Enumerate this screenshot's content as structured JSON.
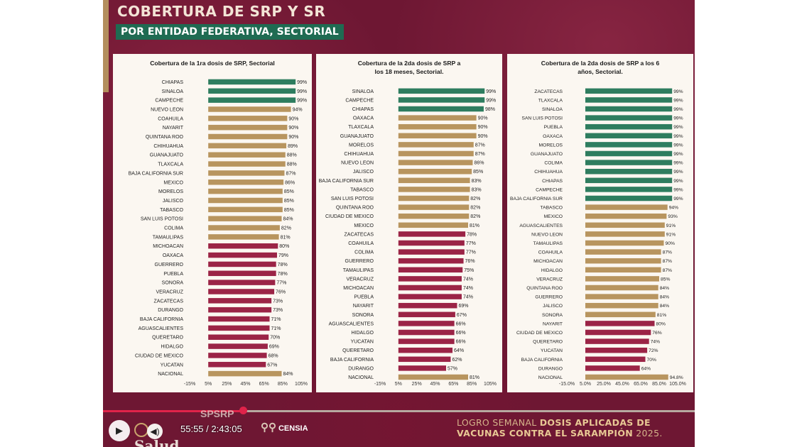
{
  "header": {
    "title": "COBERTURA DE SRP Y SR",
    "subtitle": "POR ENTIDAD FEDERATIVA, SECTORIAL"
  },
  "colors": {
    "green": "#2e7d5f",
    "gold": "#b8955f",
    "red": "#9b2446",
    "background": "#6e1733",
    "panel": "#fbf7f1"
  },
  "chart_data": [
    {
      "type": "bar",
      "orientation": "horizontal",
      "title": "Cobertura de la 1ra dosis de SRP, Sectorial",
      "xlim": [
        -15,
        105
      ],
      "ticks": [
        "-15%",
        "5%",
        "25%",
        "45%",
        "65%",
        "85%",
        "105%"
      ],
      "categories": [
        "CHIAPAS",
        "SINALOA",
        "CAMPECHE",
        "NUEVO LEON",
        "COAHUILA",
        "NAYARIT",
        "QUINTANA ROO",
        "CHIHUAHUA",
        "GUANAJUATO",
        "TLAXCALA",
        "BAJA CALIFORNIA SUR",
        "MEXICO",
        "MORELOS",
        "JALISCO",
        "TABASCO",
        "SAN LUIS POTOSI",
        "COLIMA",
        "TAMAULIPAS",
        "MICHOACAN",
        "OAXACA",
        "GUERRERO",
        "PUEBLA",
        "SONORA",
        "VERACRUZ",
        "ZACATECAS",
        "DURANGO",
        "BAJA CALIFORNIA",
        "AGUASCALIENTES",
        "QUERETARO",
        "HIDALGO",
        "CIUDAD DE MEXICO",
        "YUCATAN",
        "NACIONAL"
      ],
      "values": [
        99,
        99,
        99,
        94,
        90,
        90,
        90,
        89,
        88,
        88,
        87,
        86,
        85,
        85,
        85,
        84,
        82,
        81,
        80,
        79,
        78,
        78,
        77,
        76,
        73,
        73,
        71,
        71,
        70,
        69,
        68,
        67,
        84
      ],
      "labels": [
        "99%",
        "99%",
        "99%",
        "94%",
        "90%",
        "90%",
        "90%",
        "89%",
        "88%",
        "88%",
        "87%",
        "86%",
        "85%",
        "85%",
        "85%",
        "84%",
        "82%",
        "81%",
        "80%",
        "79%",
        "78%",
        "78%",
        "77%",
        "76%",
        "73%",
        "73%",
        "71%",
        "71%",
        "70%",
        "69%",
        "68%",
        "67%",
        "84%"
      ],
      "colors": [
        "green",
        "green",
        "green",
        "gold",
        "gold",
        "gold",
        "gold",
        "gold",
        "gold",
        "gold",
        "gold",
        "gold",
        "gold",
        "gold",
        "gold",
        "gold",
        "gold",
        "gold",
        "red",
        "red",
        "red",
        "red",
        "red",
        "red",
        "red",
        "red",
        "red",
        "red",
        "red",
        "red",
        "red",
        "red",
        "gold"
      ]
    },
    {
      "type": "bar",
      "orientation": "horizontal",
      "title": "Cobertura de la 2da dosis de SRP a los 18 meses, Sectorial.",
      "xlim": [
        -15,
        105
      ],
      "ticks": [
        "-15%",
        "5%",
        "25%",
        "45%",
        "65%",
        "85%",
        "105%"
      ],
      "categories": [
        "SINALOA",
        "CAMPECHE",
        "CHIAPAS",
        "OAXACA",
        "TLAXCALA",
        "GUANAJUATO",
        "MORELOS",
        "CHIHUAHUA",
        "NUEVO LEON",
        "JALISCO",
        "BAJA CALIFORNIA SUR",
        "TABASCO",
        "SAN LUIS POTOSI",
        "QUINTANA ROO",
        "CIUDAD DE MEXICO",
        "MEXICO",
        "ZACATECAS",
        "COAHUILA",
        "COLIMA",
        "GUERRERO",
        "TAMAULIPAS",
        "VERACRUZ",
        "MICHOACAN",
        "PUEBLA",
        "NAYARIT",
        "SONORA",
        "AGUASCALIENTES",
        "HIDALGO",
        "YUCATAN",
        "QUERETARO",
        "BAJA CALIFORNIA",
        "DURANGO",
        "NACIONAL"
      ],
      "values": [
        99,
        99,
        98,
        90,
        90,
        90,
        87,
        87,
        86,
        85,
        83,
        83,
        82,
        82,
        82,
        81,
        78,
        77,
        77,
        76,
        75,
        74,
        74,
        74,
        69,
        67,
        66,
        66,
        66,
        64,
        62,
        57,
        81
      ],
      "labels": [
        "99%",
        "99%",
        "98%",
        "90%",
        "90%",
        "90%",
        "87%",
        "87%",
        "86%",
        "85%",
        "83%",
        "83%",
        "82%",
        "82%",
        "82%",
        "81%",
        "78%",
        "77%",
        "77%",
        "76%",
        "75%",
        "74%",
        "74%",
        "74%",
        "69%",
        "67%",
        "66%",
        "66%",
        "66%",
        "64%",
        "62%",
        "57%",
        "81%"
      ],
      "colors": [
        "green",
        "green",
        "green",
        "gold",
        "gold",
        "gold",
        "gold",
        "gold",
        "gold",
        "gold",
        "gold",
        "gold",
        "gold",
        "gold",
        "gold",
        "gold",
        "red",
        "red",
        "red",
        "red",
        "red",
        "red",
        "red",
        "red",
        "red",
        "red",
        "red",
        "red",
        "red",
        "red",
        "red",
        "red",
        "gold"
      ]
    },
    {
      "type": "bar",
      "orientation": "horizontal",
      "title": "Cobertura de la 2da dosis de SRP a los 6 años, Sectorial.",
      "xlim": [
        -15,
        105
      ],
      "ticks": [
        "-15.0%",
        "5.0%",
        "25.0%",
        "45.0%",
        "65.0%",
        "85.0%",
        "105.0%"
      ],
      "categories": [
        "ZACATECAS",
        "TLAXCALA",
        "SINALOA",
        "SAN LUIS POTOSI",
        "PUEBLA",
        "OAXACA",
        "MORELOS",
        "GUANAJUATO",
        "COLIMA",
        "CHIHUAHUA",
        "CHIAPAS",
        "CAMPECHE",
        "BAJA CALIFORNIA SUR",
        "TABASCO",
        "MEXICO",
        "AGUASCALIENTES",
        "NUEVO LEON",
        "TAMAULIPAS",
        "COAHUILA",
        "MICHOACAN",
        "HIDALGO",
        "VERACRUZ",
        "QUINTANA ROO",
        "GUERRERO",
        "JALISCO",
        "SONORA",
        "NAYARIT",
        "CIUDAD DE MEXICO",
        "QUERETARO",
        "YUCATAN",
        "BAJA CALIFORNIA",
        "DURANGO",
        "NACIONAL"
      ],
      "values": [
        99,
        99,
        99,
        99,
        99,
        99,
        99,
        99,
        99,
        99,
        99,
        99,
        99,
        94,
        93,
        91,
        91,
        90,
        87,
        87,
        87,
        85,
        84,
        84,
        84,
        81,
        80,
        76,
        74,
        72,
        70,
        64,
        94.8
      ],
      "labels": [
        "99%",
        "99%",
        "99%",
        "99%",
        "99%",
        "99%",
        "99%",
        "99%",
        "99%",
        "99%",
        "99%",
        "99%",
        "99%",
        "94%",
        "93%",
        "91%",
        "91%",
        "90%",
        "87%",
        "87%",
        "87%",
        "85%",
        "84%",
        "84%",
        "84%",
        "81%",
        "80%",
        "76%",
        "74%",
        "72%",
        "70%",
        "64%",
        "94.8%"
      ],
      "colors": [
        "green",
        "green",
        "green",
        "green",
        "green",
        "green",
        "green",
        "green",
        "green",
        "green",
        "green",
        "green",
        "green",
        "gold",
        "gold",
        "gold",
        "gold",
        "gold",
        "gold",
        "gold",
        "gold",
        "gold",
        "gold",
        "gold",
        "gold",
        "gold",
        "red",
        "red",
        "red",
        "red",
        "red",
        "red",
        "gold"
      ]
    }
  ],
  "player": {
    "time": "55:55 / 2:43:05",
    "progress": 0.237
  },
  "logos": {
    "salud": "Salud",
    "spsrp": "SPSRP",
    "censia": "CENSIA"
  },
  "banner": {
    "line1_plain": "LOGRO SEMANAL ",
    "line1_bold": "DOSIS APLICADAS DE",
    "line2_bold": "VACUNAS CONTRA EL SARAMPIÓN",
    "line2_plain": " 2025."
  }
}
